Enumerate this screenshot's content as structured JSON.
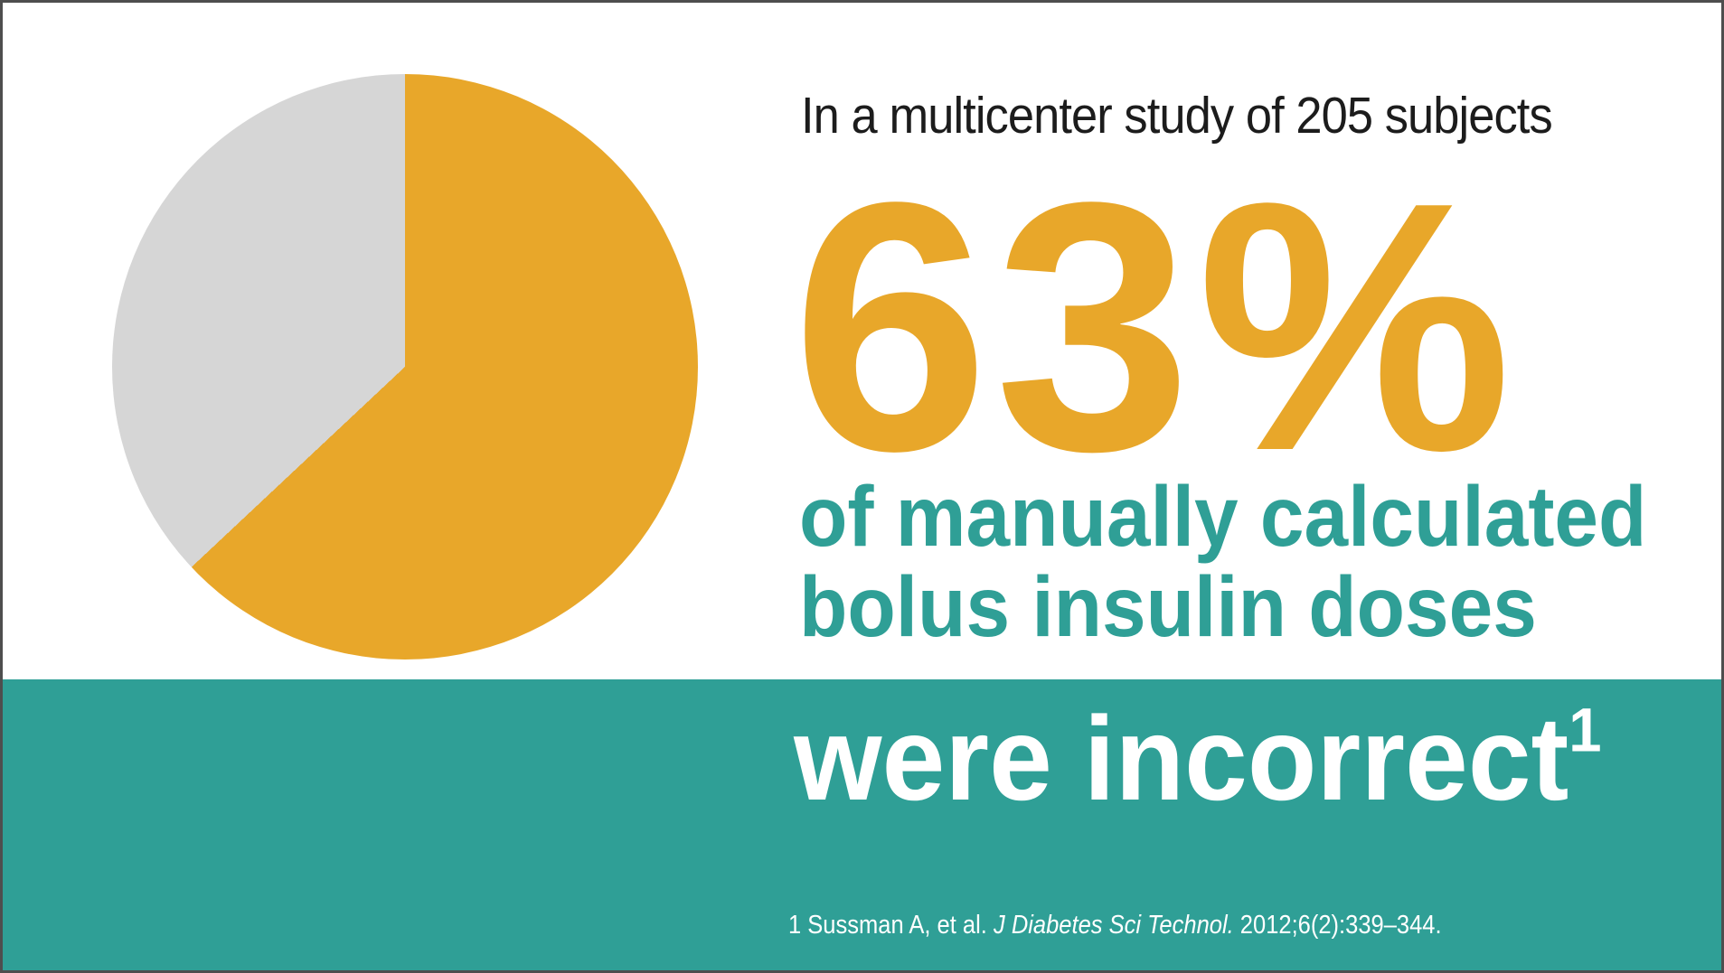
{
  "colors": {
    "gold": "#E8A72A",
    "teal": "#2F9F96",
    "gray": "#D6D6D6",
    "text_dark": "#1C1C1C",
    "white": "#FFFFFF"
  },
  "header": {
    "study_line": "In a multicenter study of 205 subjects"
  },
  "stat": {
    "value": "63%",
    "description_line1": "of manually calculated",
    "description_line2": "bolus insulin doses"
  },
  "banner": {
    "statement": "were incorrect",
    "reference_mark": "1"
  },
  "footnote": {
    "ref_prefix": "1 Sussman A, et al. ",
    "journal": "J Diabetes Sci Technol.",
    "tail": " 2012;6(2):339–344."
  },
  "chart_data": {
    "type": "pie",
    "title": "",
    "segments": [
      {
        "value": 63,
        "color": "#E8A72A"
      },
      {
        "value": 37,
        "color": "#D6D6D6"
      }
    ],
    "start_angle_deg": 0,
    "direction": "clockwise",
    "labels_shown": false,
    "legend": "none"
  }
}
